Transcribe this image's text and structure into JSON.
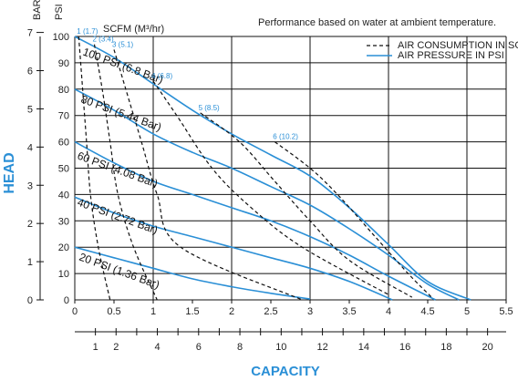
{
  "chart_data": {
    "type": "line",
    "note": "Performance based on water at ambient temperature.",
    "xlabel": "CAPACITY",
    "ylabel": "HEAD",
    "x_primary": {
      "ticks": [
        "0",
        "0.5",
        "1",
        "1.5",
        "2",
        "2.5",
        "3",
        "3.5",
        "4",
        "4.5",
        "5",
        "5.5"
      ],
      "range": [
        0,
        5.5
      ]
    },
    "x_secondary": {
      "ticks": [
        "1",
        "2",
        "4",
        "6",
        "8",
        "10",
        "12",
        "14",
        "16",
        "18",
        "20"
      ],
      "range": [
        0,
        20.9
      ]
    },
    "y_psi": {
      "title": "PSI",
      "ticks": [
        "0",
        "10",
        "20",
        "30",
        "40",
        "50",
        "60",
        "70",
        "80",
        "90",
        "100"
      ],
      "range": [
        0,
        100
      ]
    },
    "y_bar": {
      "title": "BAR",
      "ticks": [
        "0",
        "1",
        "2",
        "3",
        "4",
        "5",
        "6",
        "7"
      ],
      "range": [
        0,
        7
      ]
    },
    "legend": {
      "position": "top-right",
      "entries": [
        {
          "label": "AIR CONSUMPTION IN SCFM",
          "style": "dashed",
          "color": "#111111"
        },
        {
          "label": "AIR PRESSURE IN PSI",
          "style": "solid",
          "color": "#2a8fd6"
        }
      ]
    },
    "scfm_title": "SCFM (M³/hr)",
    "pressure_series": [
      {
        "label": "100 PSI (6.8 Bar)",
        "points": [
          [
            0,
            100
          ],
          [
            0.5,
            92
          ],
          [
            1,
            82
          ],
          [
            1.5,
            72
          ],
          [
            2,
            63
          ],
          [
            2.5,
            55
          ],
          [
            3,
            47
          ],
          [
            3.5,
            35
          ],
          [
            4,
            21
          ],
          [
            4.5,
            7
          ],
          [
            5.05,
            0
          ]
        ]
      },
      {
        "label": "80 PSI (5.44 Bar)",
        "points": [
          [
            0,
            80
          ],
          [
            0.5,
            72
          ],
          [
            1,
            63
          ],
          [
            1.5,
            56
          ],
          [
            2,
            50
          ],
          [
            2.5,
            43
          ],
          [
            3,
            36
          ],
          [
            3.5,
            27
          ],
          [
            4,
            17
          ],
          [
            4.5,
            6
          ],
          [
            4.9,
            0
          ]
        ]
      },
      {
        "label": "60 PSI (4.08 Bar)",
        "points": [
          [
            0,
            60
          ],
          [
            0.5,
            52
          ],
          [
            1,
            45
          ],
          [
            1.5,
            40
          ],
          [
            2,
            35
          ],
          [
            2.5,
            30
          ],
          [
            3,
            24
          ],
          [
            3.5,
            17
          ],
          [
            4,
            9
          ],
          [
            4.6,
            0
          ]
        ]
      },
      {
        "label": "40 PSI (2.72 Bar)",
        "points": [
          [
            0,
            39
          ],
          [
            0.5,
            33
          ],
          [
            1,
            28
          ],
          [
            1.5,
            24
          ],
          [
            2,
            20
          ],
          [
            2.5,
            16
          ],
          [
            3,
            12
          ],
          [
            3.5,
            7
          ],
          [
            4.05,
            0
          ]
        ]
      },
      {
        "label": "20 PSI (1.36 Bar)",
        "points": [
          [
            0,
            20
          ],
          [
            0.5,
            16
          ],
          [
            1,
            12
          ],
          [
            1.5,
            8
          ],
          [
            2,
            5
          ],
          [
            2.5,
            2.5
          ],
          [
            3,
            0.3
          ]
        ]
      }
    ],
    "scfm_series": [
      {
        "label": "1 (1.7)",
        "points": [
          [
            0.05,
            100
          ],
          [
            0.1,
            80
          ],
          [
            0.15,
            60
          ],
          [
            0.2,
            40
          ],
          [
            0.3,
            20
          ],
          [
            0.45,
            0
          ]
        ]
      },
      {
        "label": "2 (3.4)",
        "points": [
          [
            0.25,
            97
          ],
          [
            0.35,
            80
          ],
          [
            0.45,
            60
          ],
          [
            0.55,
            40
          ],
          [
            0.75,
            20
          ],
          [
            1.05,
            0
          ]
        ]
      },
      {
        "label": "3 (5.1)",
        "points": [
          [
            0.5,
            95
          ],
          [
            0.65,
            80
          ],
          [
            0.85,
            60
          ],
          [
            1.05,
            40
          ],
          [
            1.35,
            20
          ],
          [
            2.9,
            0
          ]
        ]
      },
      {
        "label": "4 (6.8)",
        "points": [
          [
            1.0,
            83
          ],
          [
            1.3,
            70
          ],
          [
            1.75,
            50
          ],
          [
            2.25,
            35
          ],
          [
            2.9,
            20
          ],
          [
            4.0,
            2
          ]
        ]
      },
      {
        "label": "5 (8.5)",
        "points": [
          [
            1.6,
            71
          ],
          [
            2.1,
            60
          ],
          [
            2.55,
            45
          ],
          [
            3.0,
            30
          ],
          [
            3.5,
            15
          ],
          [
            4.3,
            1
          ]
        ]
      },
      {
        "label": "6 (10.2)",
        "points": [
          [
            2.55,
            60
          ],
          [
            3.0,
            50
          ],
          [
            3.35,
            40
          ],
          [
            3.8,
            25
          ],
          [
            4.25,
            10
          ],
          [
            4.55,
            1
          ]
        ]
      }
    ]
  }
}
